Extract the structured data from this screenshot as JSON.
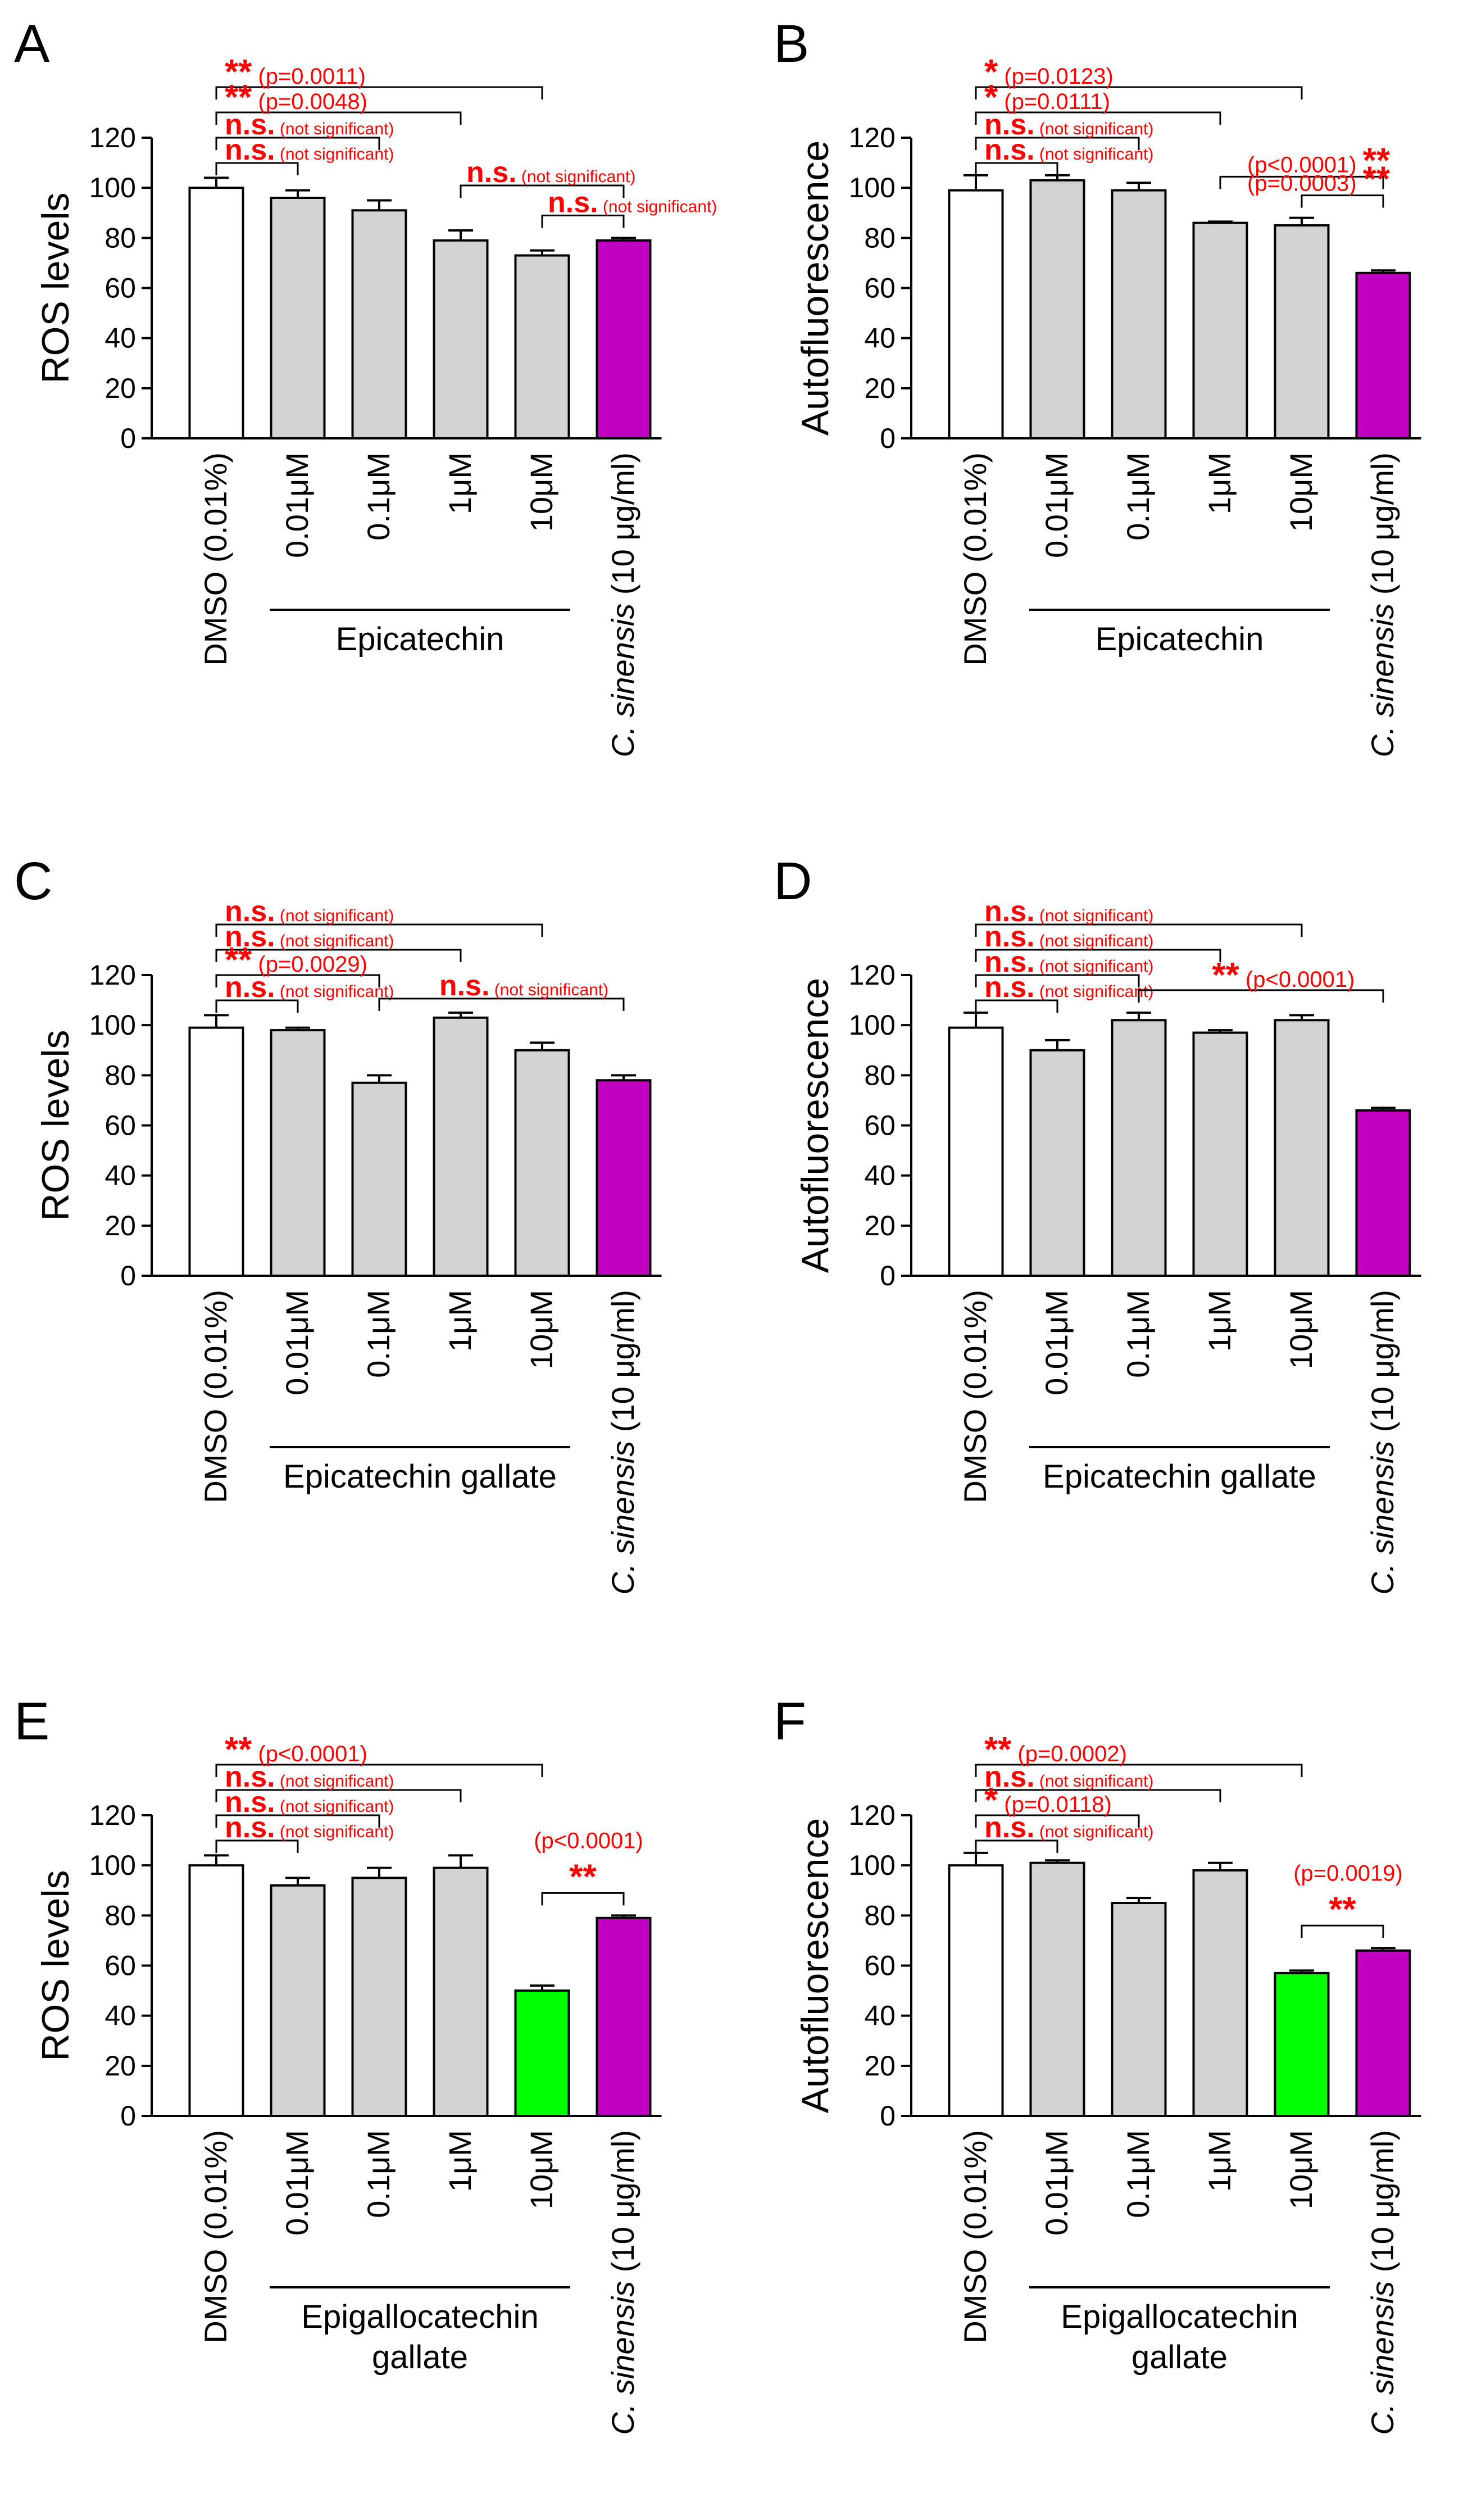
{
  "figure": {
    "sig_color": "#ff0000",
    "axis_color": "#000000",
    "bar_stroke": "#000000",
    "colors": {
      "white": "#ffffff",
      "gray": "#d3d3d3",
      "magenta": "#c000c0",
      "green": "#00ff00"
    }
  },
  "chart_data": [
    {
      "panel": "A",
      "type": "bar",
      "ylabel": "ROS levels",
      "ylim": [
        0,
        120
      ],
      "yticks": [
        "0",
        "20",
        "40",
        "60",
        "80",
        "100",
        "120"
      ],
      "categories": [
        "DMSO (0.01%)",
        "0.01μM",
        "0.1μM",
        "1μM",
        "10μM",
        "C. sinensis (10 μg/ml)"
      ],
      "values": [
        100,
        96,
        91,
        79,
        73,
        79
      ],
      "errors": [
        4,
        3,
        4,
        4,
        2,
        1
      ],
      "fills": [
        "white",
        "gray",
        "gray",
        "gray",
        "gray",
        "magenta"
      ],
      "group_label": [
        "Epicatechin"
      ],
      "comparisons": [
        {
          "from": 0,
          "to": 4,
          "level": 4,
          "stars": "**",
          "text": "(p=0.0011)"
        },
        {
          "from": 0,
          "to": 3,
          "level": 3,
          "stars": "**",
          "text": "(p=0.0048)"
        },
        {
          "from": 0,
          "to": 2,
          "level": 2,
          "stars": "n.s.",
          "text": "(not significant)"
        },
        {
          "from": 0,
          "to": 1,
          "level": 1,
          "stars": "n.s.",
          "text": "(not significant)"
        },
        {
          "from": 3,
          "to": 5,
          "level": 2,
          "stars": "n.s.",
          "text": "(not significant)",
          "label_anchor": "right"
        },
        {
          "from": 4,
          "to": 5,
          "level": 1,
          "stars": "n.s.",
          "text": "(not significant)",
          "label_anchor": "right"
        }
      ]
    },
    {
      "panel": "B",
      "type": "bar",
      "ylabel": "Autofluorescence",
      "ylim": [
        0,
        120
      ],
      "yticks": [
        "0",
        "20",
        "40",
        "60",
        "80",
        "100",
        "120"
      ],
      "categories": [
        "DMSO (0.01%)",
        "0.01μM",
        "0.1μM",
        "1μM",
        "10μM",
        "C. sinensis (10 μg/ml)"
      ],
      "values": [
        99,
        103,
        99,
        86,
        85,
        66
      ],
      "errors": [
        6,
        2,
        3,
        0.5,
        3,
        1
      ],
      "fills": [
        "white",
        "gray",
        "gray",
        "gray",
        "gray",
        "magenta"
      ],
      "group_label": [
        "Epicatechin"
      ],
      "comparisons": [
        {
          "from": 0,
          "to": 4,
          "level": 4,
          "stars": "*",
          "text": "(p=0.0123)"
        },
        {
          "from": 0,
          "to": 3,
          "level": 3,
          "stars": "*",
          "text": "(p=0.0111)"
        },
        {
          "from": 0,
          "to": 2,
          "level": 2,
          "stars": "n.s.",
          "text": "(not significant)"
        },
        {
          "from": 0,
          "to": 1,
          "level": 1,
          "stars": "n.s.",
          "text": "(not significant)"
        },
        {
          "from": 3,
          "to": 5,
          "level": 2,
          "stars": "**",
          "text": "(p<0.0001)",
          "label_anchor": "right",
          "stars_after": true
        },
        {
          "from": 4,
          "to": 5,
          "level": 1,
          "stars": "**",
          "text": "(p=0.0003)",
          "label_anchor": "right",
          "stars_after": true
        }
      ]
    },
    {
      "panel": "C",
      "type": "bar",
      "ylabel": "ROS levels",
      "ylim": [
        0,
        120
      ],
      "yticks": [
        "0",
        "20",
        "40",
        "60",
        "80",
        "100",
        "120"
      ],
      "categories": [
        "DMSO (0.01%)",
        "0.01μM",
        "0.1μM",
        "1μM",
        "10μM",
        "C. sinensis (10 μg/ml)"
      ],
      "values": [
        99,
        98,
        77,
        103,
        90,
        78
      ],
      "errors": [
        5,
        1,
        3,
        2,
        3,
        2
      ],
      "fills": [
        "white",
        "gray",
        "gray",
        "gray",
        "gray",
        "magenta"
      ],
      "group_label": [
        "Epicatechin gallate"
      ],
      "comparisons": [
        {
          "from": 0,
          "to": 4,
          "level": 4,
          "stars": "n.s.",
          "text": "(not significant)"
        },
        {
          "from": 0,
          "to": 3,
          "level": 3,
          "stars": "n.s.",
          "text": "(not significant)"
        },
        {
          "from": 0,
          "to": 2,
          "level": 2,
          "stars": "**",
          "text": "(p=0.0029)"
        },
        {
          "from": 0,
          "to": 1,
          "level": 1,
          "stars": "n.s.",
          "text": "(not significant)"
        },
        {
          "from": 2,
          "to": 5,
          "level": 1,
          "stars": "n.s.",
          "text": "(not significant)",
          "label_anchor": "mid"
        }
      ]
    },
    {
      "panel": "D",
      "type": "bar",
      "ylabel": "Autofluorescence",
      "ylim": [
        0,
        120
      ],
      "yticks": [
        "0",
        "20",
        "40",
        "60",
        "80",
        "100",
        "120"
      ],
      "categories": [
        "DMSO (0.01%)",
        "0.01μM",
        "0.1μM",
        "1μM",
        "10μM",
        "C. sinensis (10 μg/ml)"
      ],
      "values": [
        99,
        90,
        102,
        97,
        102,
        66
      ],
      "errors": [
        6,
        4,
        3,
        1,
        2,
        1
      ],
      "fills": [
        "white",
        "gray",
        "gray",
        "gray",
        "gray",
        "magenta"
      ],
      "group_label": [
        "Epicatechin gallate"
      ],
      "comparisons": [
        {
          "from": 0,
          "to": 4,
          "level": 4,
          "stars": "n.s.",
          "text": "(not significant)"
        },
        {
          "from": 0,
          "to": 3,
          "level": 3,
          "stars": "n.s.",
          "text": "(not significant)"
        },
        {
          "from": 0,
          "to": 2,
          "level": 2,
          "stars": "n.s.",
          "text": "(not significant)"
        },
        {
          "from": 0,
          "to": 1,
          "level": 1,
          "stars": "n.s.",
          "text": "(not significant)"
        },
        {
          "from": 2,
          "to": 5,
          "level": 1,
          "stars": "**",
          "text": "(p<0.0001)",
          "label_anchor": "mid"
        }
      ]
    },
    {
      "panel": "E",
      "type": "bar",
      "ylabel": "ROS levels",
      "ylim": [
        0,
        120
      ],
      "yticks": [
        "0",
        "20",
        "40",
        "60",
        "80",
        "100",
        "120"
      ],
      "categories": [
        "DMSO (0.01%)",
        "0.01μM",
        "0.1μM",
        "1μM",
        "10μM",
        "C. sinensis (10 μg/ml)"
      ],
      "values": [
        100,
        92,
        95,
        99,
        50,
        79
      ],
      "errors": [
        4,
        3,
        4,
        5,
        2,
        1
      ],
      "fills": [
        "white",
        "gray",
        "gray",
        "gray",
        "green",
        "magenta"
      ],
      "group_label": [
        "Epigallocatechin",
        "gallate"
      ],
      "comparisons": [
        {
          "from": 0,
          "to": 4,
          "level": 4,
          "stars": "**",
          "text": "(p<0.0001)"
        },
        {
          "from": 0,
          "to": 3,
          "level": 3,
          "stars": "n.s.",
          "text": "(not significant)"
        },
        {
          "from": 0,
          "to": 2,
          "level": 2,
          "stars": "n.s.",
          "text": "(not significant)"
        },
        {
          "from": 0,
          "to": 1,
          "level": 1,
          "stars": "n.s.",
          "text": "(not significant)"
        },
        {
          "from": 4,
          "to": 5,
          "level": 1,
          "stars": "**",
          "text": "(p<0.0001)",
          "label_anchor": "stack"
        }
      ]
    },
    {
      "panel": "F",
      "type": "bar",
      "ylabel": "Autofluorescence",
      "ylim": [
        0,
        120
      ],
      "yticks": [
        "0",
        "20",
        "40",
        "60",
        "80",
        "100",
        "120"
      ],
      "categories": [
        "DMSO (0.01%)",
        "0.01μM",
        "0.1μM",
        "1μM",
        "10μM",
        "C. sinensis (10 μg/ml)"
      ],
      "values": [
        100,
        101,
        85,
        98,
        57,
        66
      ],
      "errors": [
        5,
        1,
        2,
        3,
        1,
        1
      ],
      "fills": [
        "white",
        "gray",
        "gray",
        "gray",
        "green",
        "magenta"
      ],
      "group_label": [
        "Epigallocatechin",
        "gallate"
      ],
      "comparisons": [
        {
          "from": 0,
          "to": 4,
          "level": 4,
          "stars": "**",
          "text": "(p=0.0002)"
        },
        {
          "from": 0,
          "to": 3,
          "level": 3,
          "stars": "n.s.",
          "text": "(not significant)"
        },
        {
          "from": 0,
          "to": 2,
          "level": 2,
          "stars": "*",
          "text": "(p=0.0118)"
        },
        {
          "from": 0,
          "to": 1,
          "level": 1,
          "stars": "n.s.",
          "text": "(not significant)"
        },
        {
          "from": 4,
          "to": 5,
          "level": 1,
          "stars": "**",
          "text": "(p=0.0019)",
          "label_anchor": "stack"
        }
      ]
    }
  ]
}
